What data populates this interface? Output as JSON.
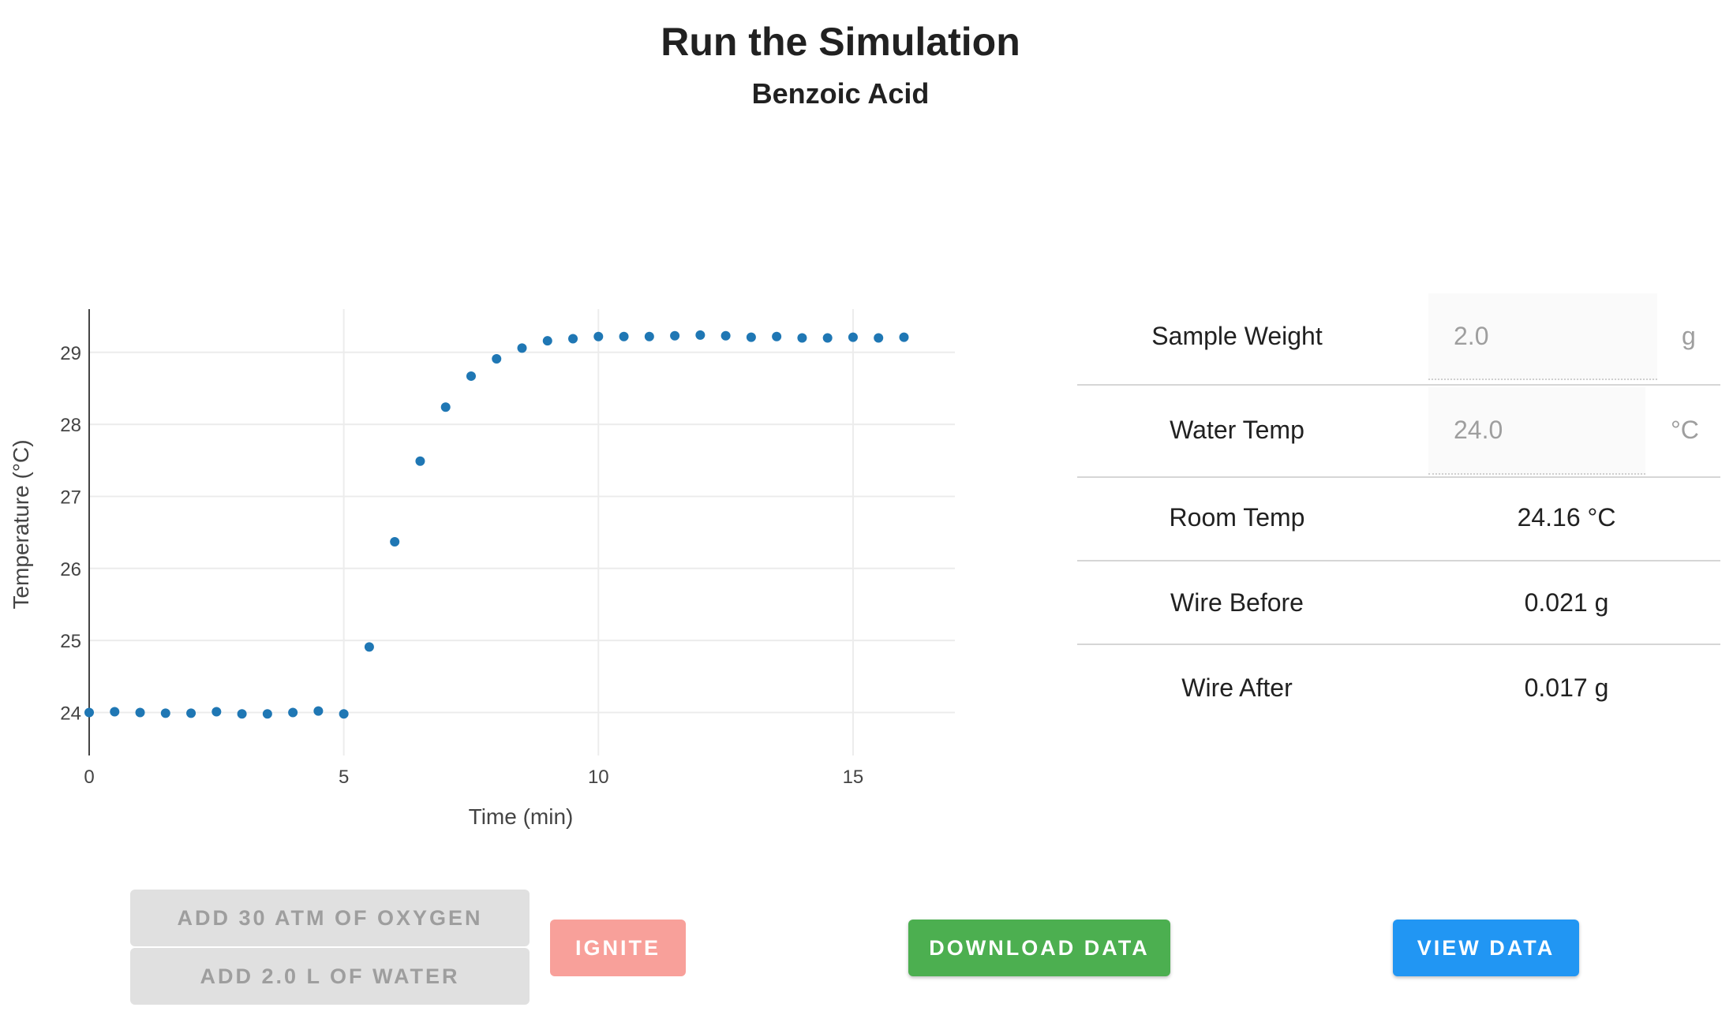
{
  "page": {
    "title": "Run the Simulation",
    "subtitle": "Benzoic Acid"
  },
  "chart_data": {
    "type": "scatter",
    "xlabel": "Time (min)",
    "ylabel": "Temperature (°C)",
    "xlim": [
      0,
      17
    ],
    "ylim": [
      23.6,
      29.6
    ],
    "x_ticks": [
      0,
      5,
      10,
      15
    ],
    "y_ticks": [
      24,
      25,
      26,
      27,
      28,
      29
    ],
    "grid": true,
    "color": "#1f77b4",
    "series": [
      {
        "x": [
          0,
          0.5,
          1,
          1.5,
          2,
          2.5,
          3,
          3.5,
          4,
          4.5,
          5,
          5.5,
          6,
          6.5,
          7,
          7.5,
          8,
          8.5,
          9,
          9.5,
          10,
          10.5,
          11,
          11.5,
          12,
          12.5,
          13,
          13.5,
          14,
          14.5,
          15,
          15.5,
          16
        ],
        "y": [
          24.0,
          24.01,
          24.0,
          23.99,
          23.99,
          24.01,
          23.98,
          23.98,
          24.0,
          24.02,
          23.98,
          24.91,
          26.37,
          27.49,
          28.24,
          28.67,
          28.91,
          29.06,
          29.16,
          29.19,
          29.22,
          29.22,
          29.22,
          29.23,
          29.24,
          29.23,
          29.21,
          29.22,
          29.2,
          29.2,
          29.21,
          29.2,
          29.21
        ]
      }
    ]
  },
  "params": {
    "sample_weight": {
      "label": "Sample Weight",
      "value": "2.0",
      "unit": "g"
    },
    "water_temp": {
      "label": "Water Temp",
      "value": "24.0",
      "unit": "°C"
    },
    "room_temp": {
      "label": "Room Temp",
      "value": "24.16 °C"
    },
    "wire_before": {
      "label": "Wire Before",
      "value": "0.021 g"
    },
    "wire_after": {
      "label": "Wire After",
      "value": "0.017 g"
    }
  },
  "buttons": {
    "add_oxygen": "ADD 30 ATM OF OXYGEN",
    "add_water": "ADD 2.0 L OF WATER",
    "ignite": "IGNITE",
    "download": "DOWNLOAD DATA",
    "view": "VIEW DATA"
  },
  "colors": {
    "ignite": "#f8a09a",
    "download": "#4caf50",
    "view": "#2196f3",
    "disabled": "#e0e0e0"
  }
}
